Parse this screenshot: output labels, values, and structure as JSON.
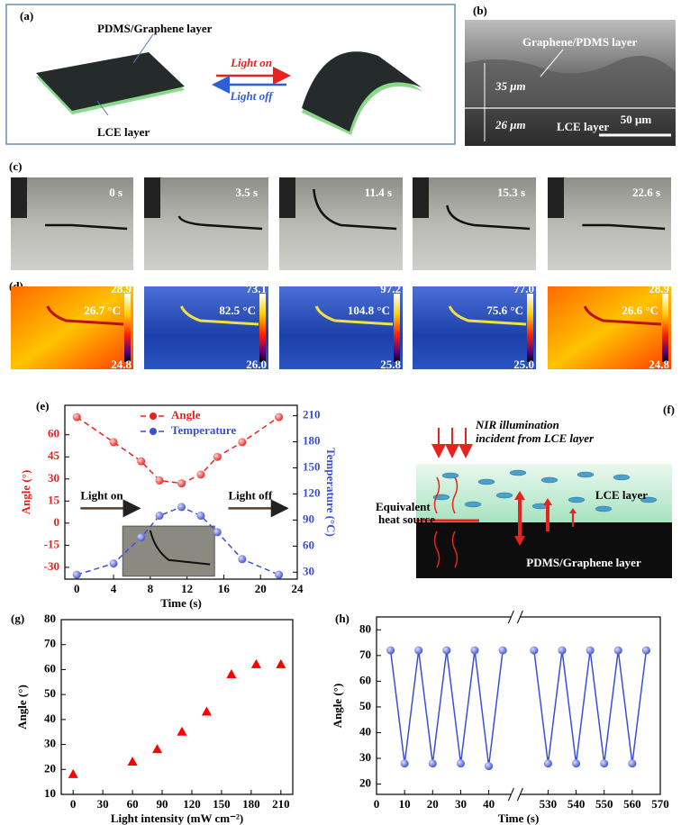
{
  "panels": {
    "a": {
      "label": "(a)",
      "top_layer": "PDMS/Graphene layer",
      "bottom_layer": "LCE layer",
      "light_on": "Light on",
      "light_off": "Light off"
    },
    "b": {
      "label": "(b)",
      "layer": "Graphene/PDMS layer",
      "top_thickness": "35 μm",
      "bottom_thickness": "26 μm",
      "lce": "LCE layer",
      "scale_bar": "50 μm"
    },
    "c": {
      "label": "(c)",
      "times": [
        "0 s",
        "3.5 s",
        "11.4 s",
        "15.3 s",
        "22.6 s"
      ]
    },
    "d": {
      "label": "(d)",
      "temperatures": [
        "26.7 °C",
        "82.5 °C",
        "104.8 °C",
        "75.6 °C",
        "26.6 °C"
      ],
      "scale_max": [
        "28.9",
        "73.1",
        "97.2",
        "77.0",
        "28.9"
      ],
      "scale_min": [
        "24.8",
        "26.0",
        "25.8",
        "25.0",
        "24.8"
      ]
    },
    "f": {
      "label": "(f)",
      "illumination": [
        "NIR illumination",
        "incident from LCE layer"
      ],
      "lce": "LCE layer",
      "heat_source": [
        "Equivalent",
        "heat source"
      ],
      "pdms": "PDMS/Graphene layer"
    }
  },
  "chart_data": [
    {
      "type": "line",
      "label": "(e)",
      "xlabel": "Time (s)",
      "ylabel": "Angle (°)",
      "y2label": "Temperature (°C)",
      "x": [
        0,
        4,
        7,
        9,
        11.4,
        13.5,
        15.3,
        18,
        22
      ],
      "series": [
        {
          "name": "Angle",
          "color": "#e8231f",
          "marker": "circle",
          "values": [
            72,
            55,
            42,
            29,
            27,
            33,
            45,
            55,
            72
          ]
        },
        {
          "name": "Temperature",
          "color": "#3b4fd6",
          "marker": "circle",
          "axis": "y2",
          "values": [
            27,
            40,
            70,
            95,
            105,
            95,
            76,
            45,
            27
          ]
        }
      ],
      "annotations": [
        "Light on",
        "Light off"
      ],
      "xlim": [
        -1.3,
        24
      ],
      "xticks": [
        0,
        4,
        8,
        12,
        16,
        20,
        24
      ],
      "ylim": [
        -38,
        80
      ],
      "yticks": [
        -30,
        -15,
        0,
        15,
        30,
        45,
        60
      ],
      "y2lim": [
        22,
        222
      ],
      "y2ticks": [
        30,
        60,
        90,
        120,
        150,
        180,
        210
      ],
      "legend": "upper center"
    },
    {
      "type": "scatter",
      "label": "(g)",
      "xlabel": "Light intensity (mW cm⁻²)",
      "ylabel": "Angle (°)",
      "x": [
        0,
        60,
        85,
        110,
        135,
        160,
        185,
        210
      ],
      "values": [
        18,
        23,
        28,
        35,
        43,
        58,
        62,
        62
      ],
      "color": "#ff0000",
      "marker": "triangle",
      "xlim": [
        -12,
        222
      ],
      "xticks": [
        0,
        30,
        60,
        90,
        120,
        150,
        180,
        210
      ],
      "ylim": [
        10,
        80
      ],
      "yticks": [
        10,
        20,
        30,
        40,
        50,
        60,
        70,
        80
      ]
    },
    {
      "type": "line",
      "label": "(h)",
      "xlabel": "Time (s)",
      "ylabel": "Angle (°)",
      "x": [
        5,
        10,
        15,
        20,
        25,
        30,
        35,
        40,
        45,
        525,
        530,
        535,
        540,
        545,
        550,
        555,
        560,
        565
      ],
      "values": [
        72,
        28,
        72,
        28,
        72,
        28,
        72,
        27,
        72,
        72,
        28,
        72,
        28,
        72,
        28,
        72,
        28,
        72
      ],
      "color": "#3b4fd6",
      "marker": "circle",
      "xlim": [
        0,
        570
      ],
      "xbreak": [
        47,
        521
      ],
      "xticks": [
        0,
        10,
        20,
        30,
        40,
        530,
        540,
        550,
        560,
        570
      ],
      "ylim": [
        16,
        85
      ],
      "yticks": [
        20,
        30,
        40,
        50,
        60,
        70,
        80
      ]
    }
  ]
}
